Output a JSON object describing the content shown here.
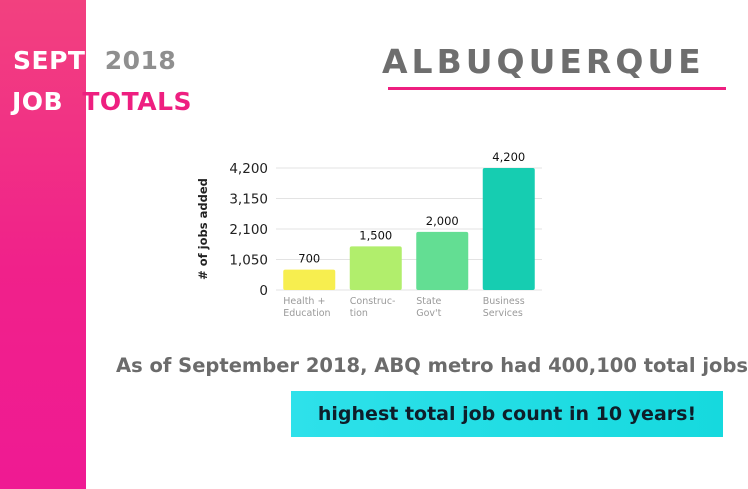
{
  "header": {
    "line1_word1": "SEPT",
    "line1_word2": "2018",
    "line2_word1": "JOB",
    "line2_word2": "TOTALS",
    "city": "ALBUQUERQUE"
  },
  "colors": {
    "accent_pink": "#ee1f80",
    "heading_gray": "#6e6e6e",
    "banner_cyan": "#1ad9e0"
  },
  "chart_data": {
    "type": "bar",
    "ylabel": "# of jobs added",
    "ylim": [
      0,
      4200
    ],
    "yticks": [
      0,
      1050,
      2100,
      3150,
      4200
    ],
    "ytick_labels": [
      "0",
      "1,050",
      "2,100",
      "3,150",
      "4,200"
    ],
    "grid": true,
    "categories": [
      [
        "Health +",
        "Education"
      ],
      [
        "Construc-",
        "tion"
      ],
      [
        "State",
        "Gov't"
      ],
      [
        "Business",
        "Services"
      ]
    ],
    "values": [
      700,
      1500,
      2000,
      4200
    ],
    "value_labels": [
      "700",
      "1,500",
      "2,000",
      "4,200"
    ],
    "bar_colors": [
      "#f7ee4f",
      "#b1ee6c",
      "#63de93",
      "#16cdb1"
    ]
  },
  "summary": "As of September 2018, ABQ metro had 400,100 total jobs",
  "banner": "highest total job count in 10 years!"
}
